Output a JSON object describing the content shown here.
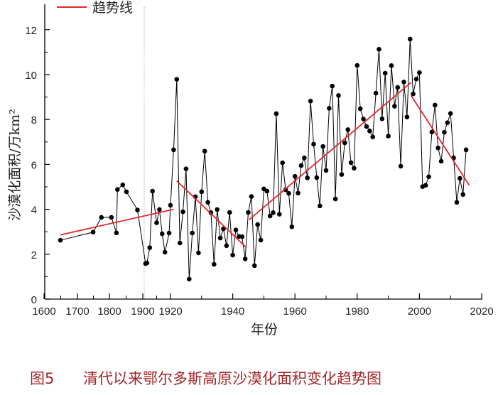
{
  "chart_data": {
    "type": "line",
    "title": "",
    "caption_label": "图5",
    "caption_text": "清代以来鄂尔多斯高原沙漠化面积变化趋势图",
    "xlabel": "年份",
    "ylabel": "沙漠化面积/万km²",
    "xticks": [
      1600,
      1700,
      1800,
      1900,
      1920,
      1940,
      1960,
      1980,
      2000,
      2020
    ],
    "yticks": [
      0,
      2,
      4,
      6,
      8,
      10,
      12
    ],
    "xlim": [
      1600,
      2020
    ],
    "ylim": [
      0,
      12.5
    ],
    "reference_line_year": 1901,
    "legend": {
      "label": "趋势线",
      "color": "#e3262b",
      "placement": "top-left"
    },
    "series": [
      {
        "name": "沙漠化面积",
        "color": "#000000",
        "x": [
          1649,
          1749,
          1775,
          1806,
          1821,
          1824,
          1840,
          1851,
          1884,
          1902,
          1903,
          1905,
          1907,
          1910,
          1912,
          1914,
          1916,
          1919,
          1920,
          1921,
          1922,
          1923,
          1924,
          1925,
          1926,
          1927,
          1928,
          1929,
          1930,
          1931,
          1932,
          1933,
          1934,
          1935,
          1936,
          1937,
          1938,
          1939,
          1940,
          1941,
          1942,
          1943,
          1944,
          1945,
          1946,
          1947,
          1948,
          1949,
          1950,
          1951,
          1952,
          1953,
          1954,
          1955,
          1956,
          1957,
          1958,
          1959,
          1960,
          1961,
          1962,
          1963,
          1964,
          1965,
          1966,
          1967,
          1968,
          1969,
          1970,
          1971,
          1972,
          1973,
          1974,
          1975,
          1976,
          1977,
          1978,
          1979,
          1980,
          1981,
          1982,
          1983,
          1984,
          1985,
          1986,
          1987,
          1988,
          1989,
          1990,
          1991,
          1992,
          1993,
          1994,
          1995,
          1996,
          1997,
          1998,
          1999,
          2000,
          2001,
          2002,
          2003,
          2004,
          2005,
          2006,
          2007,
          2008,
          2009,
          2010,
          2011,
          2012,
          2013,
          2014,
          2015
        ],
        "y": [
          2.62,
          2.98,
          3.64,
          3.64,
          2.95,
          4.88,
          5.09,
          4.78,
          3.97,
          1.58,
          1.61,
          2.29,
          4.81,
          3.4,
          3.99,
          2.91,
          2.09,
          2.94,
          4.18,
          6.65,
          9.79,
          2.5,
          3.89,
          5.8,
          0.89,
          2.94,
          4.56,
          2.06,
          4.78,
          6.59,
          4.31,
          3.85,
          1.55,
          3.99,
          2.72,
          3.13,
          2.38,
          3.86,
          1.96,
          3.08,
          2.79,
          2.78,
          1.79,
          3.86,
          4.57,
          1.49,
          3.32,
          2.63,
          4.91,
          4.81,
          3.7,
          3.85,
          8.26,
          3.78,
          6.07,
          4.87,
          4.71,
          3.22,
          5.47,
          4.72,
          5.95,
          6.29,
          5.4,
          8.82,
          6.9,
          5.41,
          4.15,
          6.8,
          5.73,
          8.5,
          9.49,
          4.46,
          9.07,
          5.55,
          6.96,
          7.55,
          6.08,
          5.83,
          10.41,
          8.48,
          8.02,
          7.69,
          7.49,
          7.22,
          9.17,
          11.13,
          8.03,
          10.06,
          7.26,
          10.4,
          8.59,
          9.43,
          5.92,
          9.67,
          8.11,
          11.58,
          9.14,
          9.8,
          10.09,
          5.01,
          5.07,
          5.45,
          7.44,
          8.64,
          6.73,
          6.14,
          7.43,
          7.86,
          8.27,
          6.29,
          4.31,
          5.38,
          4.66,
          6.65
        ]
      }
    ],
    "trend_lines": [
      {
        "x": [
          1649,
          1921
        ],
        "y": [
          2.86,
          4.0
        ]
      },
      {
        "x": [
          1922,
          1944.4
        ],
        "y": [
          5.27,
          2.29
        ]
      },
      {
        "x": [
          1945.3,
          1997.3
        ],
        "y": [
          3.54,
          9.65
        ]
      },
      {
        "x": [
          1997.3,
          2016
        ],
        "y": [
          9.07,
          5.07
        ]
      }
    ]
  }
}
